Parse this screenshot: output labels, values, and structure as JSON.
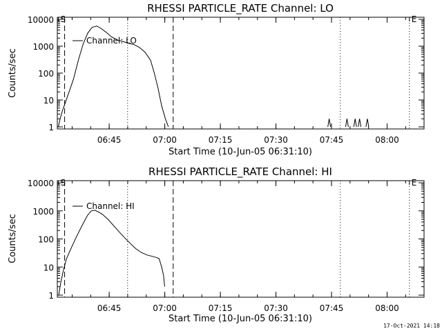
{
  "chart_data": [
    {
      "type": "line",
      "title": "RHESSI PARTICLE_RATE Channel: LO",
      "xlabel": "Start Time (10-Jun-05 06:31:10)",
      "ylabel": "Counts/sec",
      "yscale": "log",
      "ylim": [
        1,
        10000
      ],
      "xlim_minutes": [
        -0.17,
        98.8
      ],
      "y_ticks": [
        "1",
        "10",
        "100",
        "1000",
        "10000"
      ],
      "x_ticks": [
        "06:45",
        "07:00",
        "07:15",
        "07:30",
        "07:45",
        "08:00"
      ],
      "x_tick_minutes": [
        13.83,
        28.83,
        43.83,
        58.83,
        73.83,
        88.83
      ],
      "legend": "Channel: LO",
      "markers": [
        {
          "label": "S",
          "minute": 0.1,
          "style": "solid"
        },
        {
          "label": "E",
          "minute": 94.85,
          "style": "solid"
        }
      ],
      "vlines": [
        {
          "minute": 1.8,
          "style": "dashed"
        },
        {
          "minute": 18.8,
          "style": "dotted"
        },
        {
          "minute": 31.1,
          "style": "dashed"
        },
        {
          "minute": 76.2,
          "style": "dotted"
        },
        {
          "minute": 94.85,
          "style": "dotted"
        }
      ],
      "series": [
        {
          "name": "Channel: LO",
          "x": [
            0.1,
            0.6,
            1.2,
            2.0,
            3.0,
            4.2,
            5.5,
            6.8,
            8.0,
            9.2,
            10.5,
            11.7,
            13.0,
            14.5,
            16.0,
            17.5,
            19.0,
            20.5,
            22.0,
            23.5,
            25.0,
            26.0,
            27.0,
            28.0,
            29.0,
            29.8
          ],
          "y": [
            1,
            2,
            4,
            8,
            20,
            60,
            300,
            1200,
            3000,
            5000,
            5600,
            4500,
            3300,
            2200,
            1700,
            1500,
            1300,
            1150,
            900,
            600,
            300,
            100,
            28,
            6,
            2,
            1
          ],
          "spikes": [
            {
              "x": 73.2,
              "y": 2
            },
            {
              "x": 78.0,
              "y": 2
            },
            {
              "x": 80.2,
              "y": 2
            },
            {
              "x": 81.4,
              "y": 2
            },
            {
              "x": 83.5,
              "y": 2
            }
          ]
        }
      ]
    },
    {
      "type": "line",
      "title": "RHESSI PARTICLE_RATE Channel: HI",
      "xlabel": "Start Time (10-Jun-05 06:31:10)",
      "ylabel": "Counts/sec",
      "yscale": "log",
      "ylim": [
        1,
        10000
      ],
      "xlim_minutes": [
        -0.17,
        98.8
      ],
      "y_ticks": [
        "1",
        "10",
        "100",
        "1000",
        "10000"
      ],
      "x_ticks": [
        "06:45",
        "07:00",
        "07:15",
        "07:30",
        "07:45",
        "08:00"
      ],
      "x_tick_minutes": [
        13.83,
        28.83,
        43.83,
        58.83,
        73.83,
        88.83
      ],
      "legend": "Channel: HI",
      "markers": [
        {
          "label": "S",
          "minute": 0.1,
          "style": "solid"
        },
        {
          "label": "E",
          "minute": 94.85,
          "style": "solid"
        }
      ],
      "vlines": [
        {
          "minute": 1.8,
          "style": "dashed"
        },
        {
          "minute": 18.8,
          "style": "dotted"
        },
        {
          "minute": 31.1,
          "style": "dashed"
        },
        {
          "minute": 76.2,
          "style": "dotted"
        },
        {
          "minute": 94.85,
          "style": "dotted"
        }
      ],
      "series": [
        {
          "name": "Channel: HI",
          "x": [
            0.2,
            0.8,
            1.5,
            2.3,
            3.5,
            5.0,
            6.5,
            8.0,
            9.0,
            10.0,
            11.0,
            12.0,
            13.5,
            15.0,
            16.5,
            18.0,
            19.5,
            21.0,
            22.5,
            24.0,
            25.5,
            26.5,
            27.3,
            28.0,
            28.5,
            28.8
          ],
          "y": [
            1,
            3,
            8,
            20,
            45,
            120,
            300,
            700,
            1000,
            1050,
            900,
            750,
            500,
            300,
            180,
            110,
            70,
            45,
            33,
            27,
            24,
            22,
            20,
            10,
            5,
            2
          ]
        }
      ]
    }
  ],
  "footer": {
    "timestamp": "17-Oct-2021 14:18"
  }
}
